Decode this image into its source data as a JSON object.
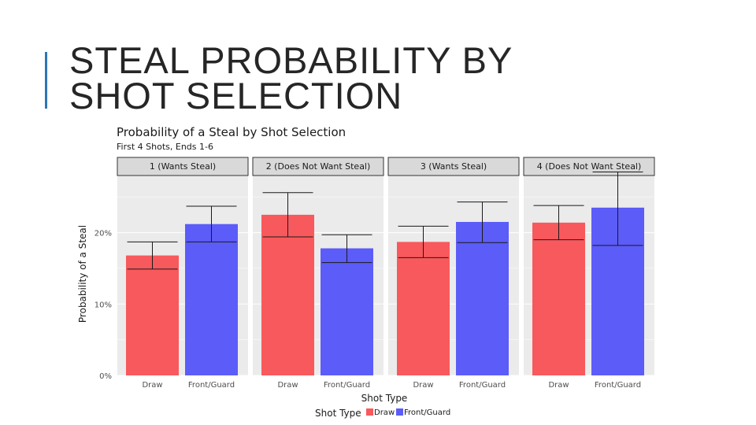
{
  "slide": {
    "title_lines": [
      "STEAL PROBABILITY BY",
      "SHOT SELECTION"
    ]
  },
  "colors": {
    "draw": "#f8595c",
    "front_guard": "#5c5cf8",
    "accent": "#2e75b6"
  },
  "chart_data": {
    "type": "bar",
    "title": "Probability of a Steal by Shot Selection",
    "subtitle": "First 4 Shots, Ends 1-6",
    "xlabel": "Shot Type",
    "ylabel": "Probability of a Steal",
    "ylim": [
      0,
      28
    ],
    "yticks": [
      0,
      10,
      20
    ],
    "ytick_labels": [
      "0%",
      "10%",
      "20%"
    ],
    "categories": [
      "Draw",
      "Front/Guard"
    ],
    "facets": [
      {
        "label": "1 (Wants Steal)",
        "bars": [
          {
            "category": "Draw",
            "value": 16.8,
            "lower": 14.9,
            "upper": 18.7
          },
          {
            "category": "Front/Guard",
            "value": 21.2,
            "lower": 18.7,
            "upper": 23.7
          }
        ]
      },
      {
        "label": "2 (Does Not Want Steal)",
        "bars": [
          {
            "category": "Draw",
            "value": 22.5,
            "lower": 19.4,
            "upper": 25.6
          },
          {
            "category": "Front/Guard",
            "value": 17.8,
            "lower": 15.8,
            "upper": 19.7
          }
        ]
      },
      {
        "label": "3 (Wants Steal)",
        "bars": [
          {
            "category": "Draw",
            "value": 18.7,
            "lower": 16.5,
            "upper": 20.9
          },
          {
            "category": "Front/Guard",
            "value": 21.5,
            "lower": 18.6,
            "upper": 24.3
          }
        ]
      },
      {
        "label": "4 (Does Not Want Steal)",
        "bars": [
          {
            "category": "Draw",
            "value": 21.4,
            "lower": 19.0,
            "upper": 23.8
          },
          {
            "category": "Front/Guard",
            "value": 23.5,
            "lower": 18.2,
            "upper": 28.5
          }
        ]
      }
    ],
    "legend": {
      "title": "Shot Type",
      "position": "bottom",
      "entries": [
        "Draw",
        "Front/Guard"
      ]
    }
  }
}
